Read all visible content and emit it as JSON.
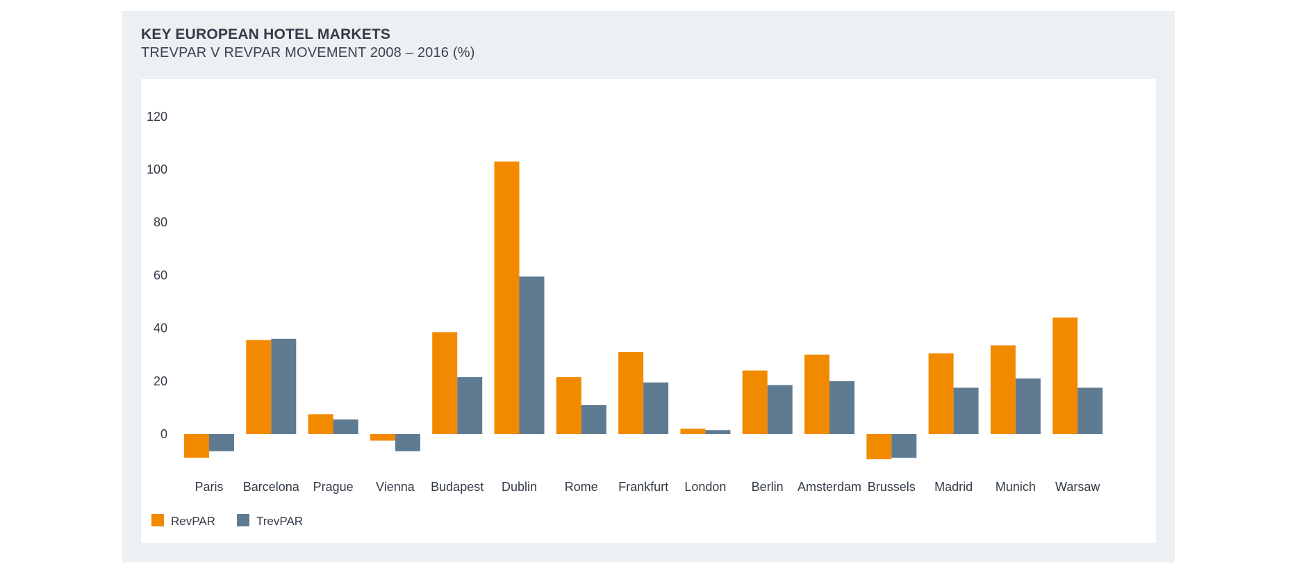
{
  "header": {
    "title": "KEY EUROPEAN HOTEL MARKETS",
    "subtitle": "TREVPAR V REVPAR MOVEMENT 2008 – 2016 (%)"
  },
  "colors": {
    "revpar": "#f28a00",
    "trevpar": "#5f7b91"
  },
  "chart_data": {
    "type": "bar",
    "title": "KEY EUROPEAN HOTEL MARKETS",
    "subtitle": "TREVPAR V REVPAR MOVEMENT 2008 – 2016 (%)",
    "categories": [
      "Paris",
      "Barcelona",
      "Prague",
      "Vienna",
      "Budapest",
      "Dublin",
      "Rome",
      "Frankfurt",
      "London",
      "Berlin",
      "Amsterdam",
      "Brussels",
      "Madrid",
      "Munich",
      "Warsaw"
    ],
    "series": [
      {
        "name": "RevPAR",
        "values": [
          -9,
          35.5,
          7.5,
          -2.5,
          38.5,
          103,
          21.5,
          31,
          2,
          24,
          30,
          -9.5,
          30.5,
          33.5,
          44
        ]
      },
      {
        "name": "TrevPAR",
        "values": [
          -6.5,
          36,
          5.5,
          -6.5,
          21.5,
          59.5,
          11,
          19.5,
          1.5,
          18.5,
          20,
          -9,
          17.5,
          21,
          17.5
        ]
      }
    ],
    "ylim": [
      -10,
      120
    ],
    "yticks": [
      0,
      20,
      40,
      60,
      80,
      100,
      120
    ],
    "xlabel": "",
    "ylabel": "",
    "grid": false,
    "legend": "bottom-left"
  }
}
